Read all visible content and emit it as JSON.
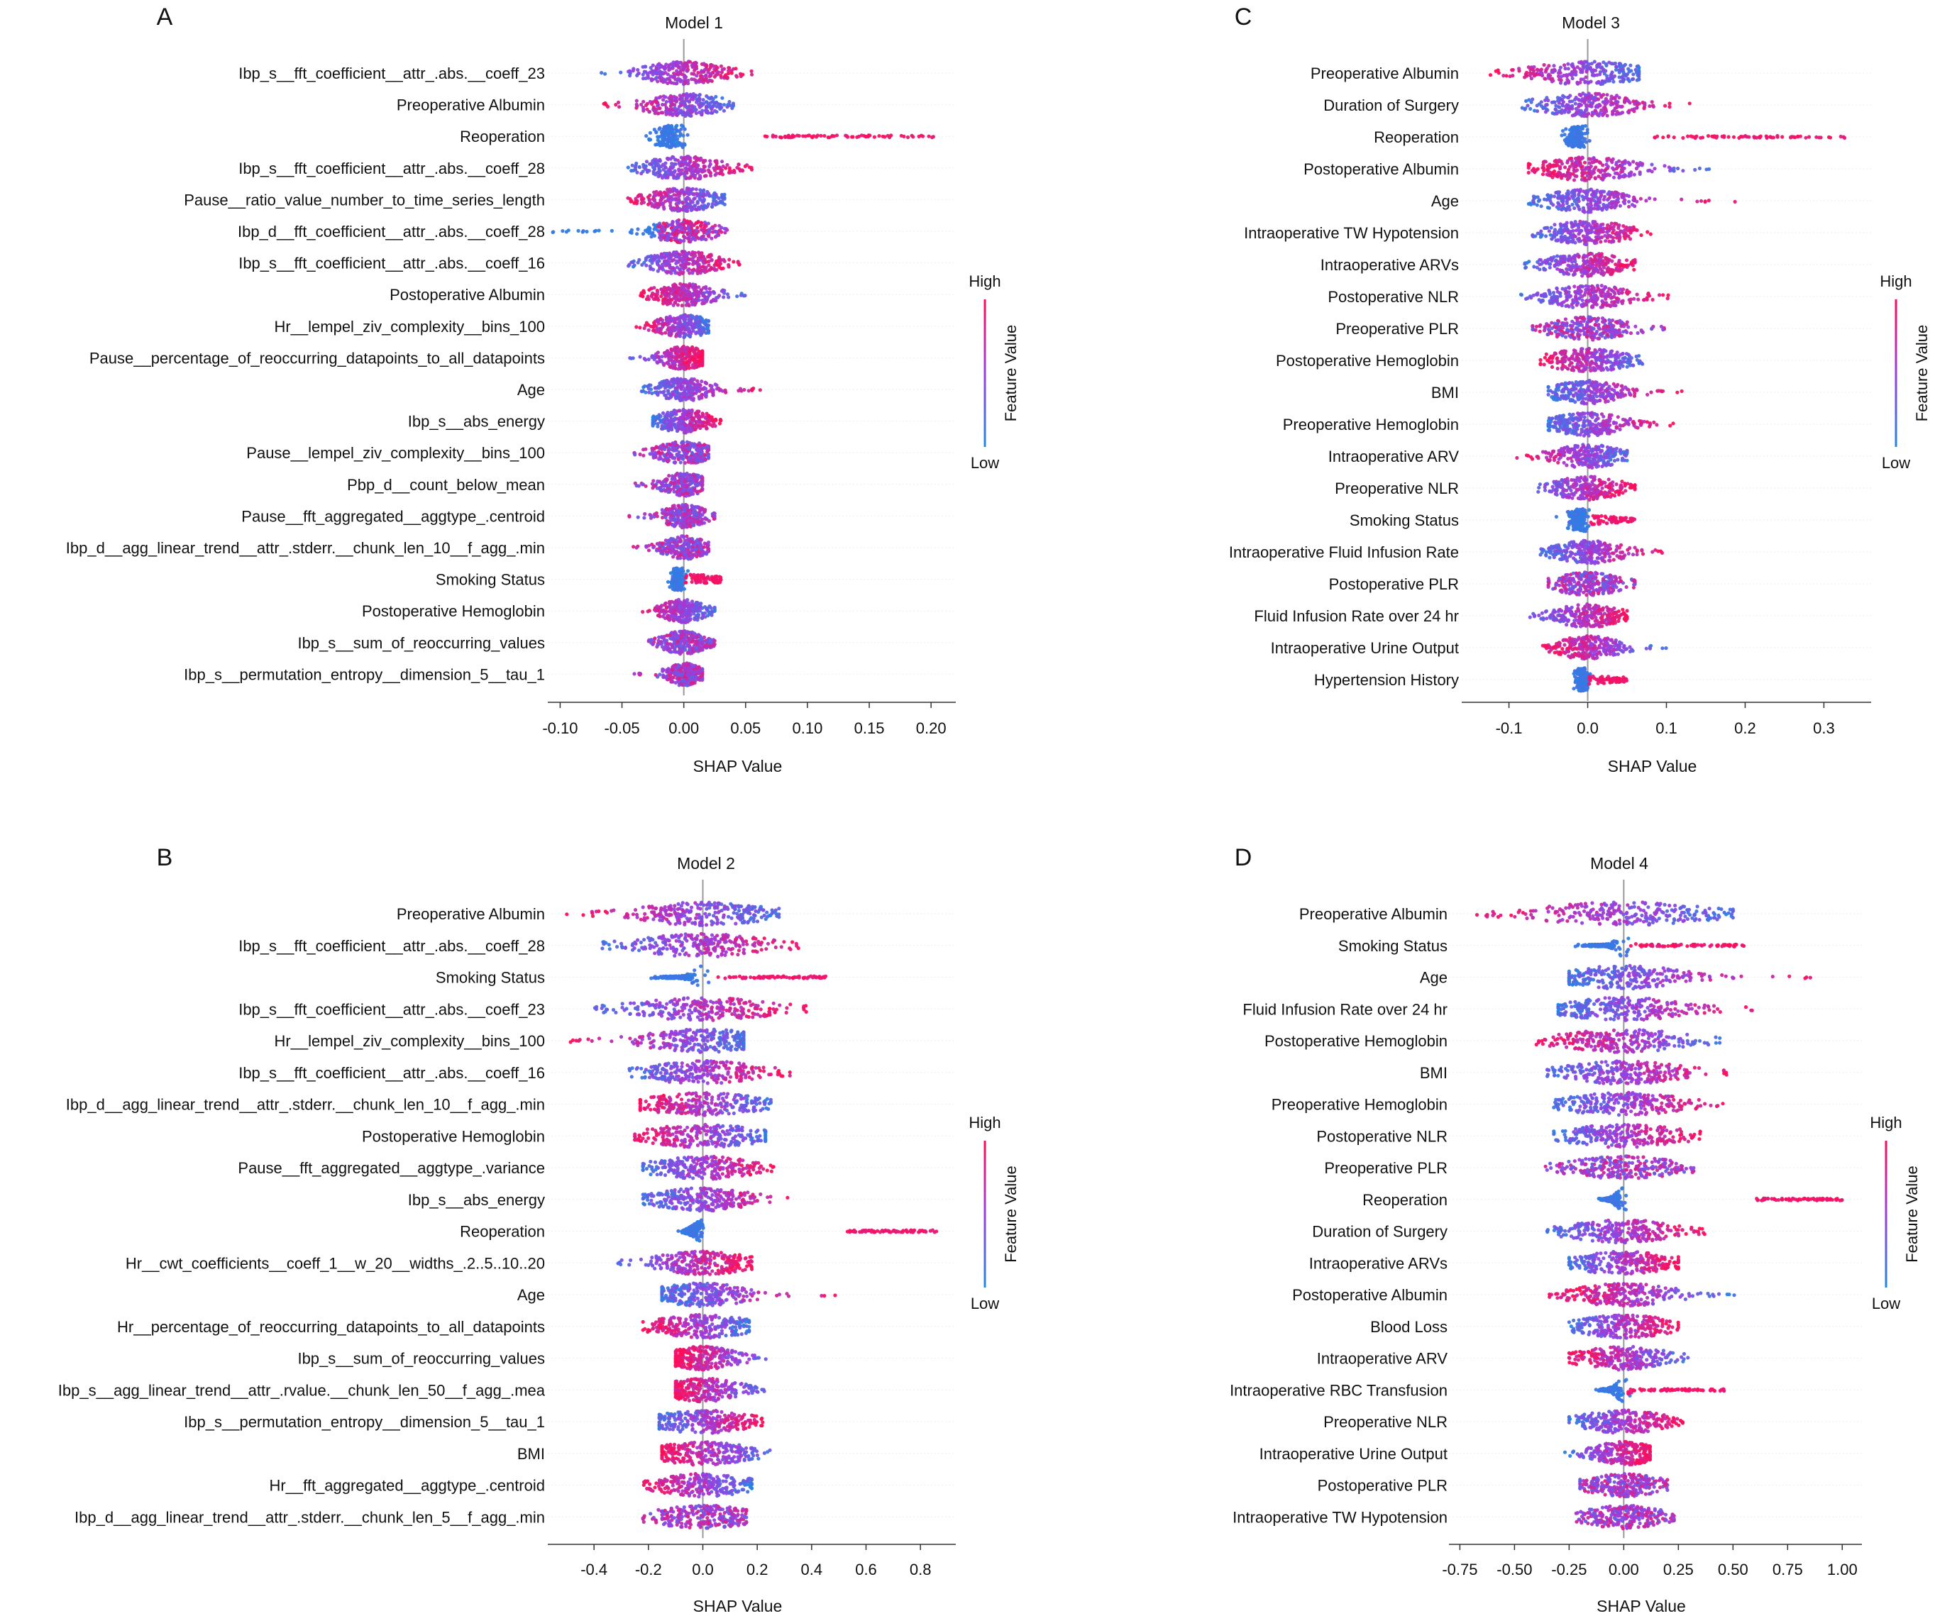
{
  "colors": {
    "high": "#ff0d57",
    "mid": "#9a3ee0",
    "low": "#1e88e5",
    "axis": "#333333",
    "zero_line": "#999999",
    "row_grid": "#eeeeee"
  },
  "shared": {
    "xlabel": "SHAP Value",
    "colorbar_title": "Feature Value",
    "colorbar_high": "High",
    "colorbar_low": "Low"
  },
  "chart_data": [
    {
      "type": "scatter",
      "panel_letter": "A",
      "title": "Model 1",
      "xlabel": "SHAP Value",
      "xlim": [
        -0.11,
        0.22
      ],
      "xticks": [
        -0.1,
        -0.05,
        0.0,
        0.05,
        0.1,
        0.15,
        0.2
      ],
      "xtick_labels": [
        "-0.10",
        "-0.05",
        "0.00",
        "0.05",
        "0.10",
        "0.15",
        "0.20"
      ],
      "features": [
        {
          "name": "Ibp_s__fft_coefficient__attr_.abs.__coeff_23",
          "min": -0.07,
          "max": 0.06,
          "pattern": "high_right",
          "core": 0.018
        },
        {
          "name": "Preoperative Albumin",
          "min": -0.065,
          "max": 0.04,
          "pattern": "high_left",
          "core": 0.018
        },
        {
          "name": "Reoperation",
          "min": -0.02,
          "max": 0.205,
          "pattern": "binary_right",
          "low_center": -0.012,
          "high_min": 0.055
        },
        {
          "name": "Ibp_s__fft_coefficient__attr_.abs.__coeff_28",
          "min": -0.045,
          "max": 0.055,
          "pattern": "high_right",
          "core": 0.018
        },
        {
          "name": "Pause__ratio_value_number_to_time_series_length",
          "min": -0.05,
          "max": 0.035,
          "pattern": "high_left",
          "core": 0.016
        },
        {
          "name": "Ibp_d__fft_coefficient__attr_.abs.__coeff_28",
          "min": -0.11,
          "max": 0.035,
          "pattern": "low_tail_left",
          "core": 0.014
        },
        {
          "name": "Ibp_s__fft_coefficient__attr_.abs.__coeff_16",
          "min": -0.045,
          "max": 0.045,
          "pattern": "high_right",
          "core": 0.016
        },
        {
          "name": "Postoperative Albumin",
          "min": -0.035,
          "max": 0.055,
          "pattern": "high_left",
          "core": 0.014
        },
        {
          "name": "Hr__lempel_ziv_complexity__bins_100",
          "min": -0.04,
          "max": 0.02,
          "pattern": "high_left",
          "core": 0.012
        },
        {
          "name": "Pause__percentage_of_reoccurring_datapoints_to_all_datapoints",
          "min": -0.05,
          "max": 0.015,
          "pattern": "high_right",
          "core": 0.01
        },
        {
          "name": "Age",
          "min": -0.035,
          "max": 0.07,
          "pattern": "high_right",
          "core": 0.012
        },
        {
          "name": "Ibp_s__abs_energy",
          "min": -0.025,
          "max": 0.03,
          "pattern": "high_right",
          "core": 0.012
        },
        {
          "name": "Pause__lempel_ziv_complexity__bins_100",
          "min": -0.04,
          "max": 0.02,
          "pattern": "mixed",
          "core": 0.012
        },
        {
          "name": "Pbp_d__count_below_mean",
          "min": -0.04,
          "max": 0.015,
          "pattern": "mixed",
          "core": 0.01
        },
        {
          "name": "Pause__fft_aggregated__aggtype_.centroid",
          "min": -0.045,
          "max": 0.025,
          "pattern": "mixed",
          "core": 0.01
        },
        {
          "name": "Ibp_d__agg_linear_trend__attr_.stderr.__chunk_len_10__f_agg_.min",
          "min": -0.045,
          "max": 0.02,
          "pattern": "mixed",
          "core": 0.01
        },
        {
          "name": "Smoking Status",
          "min": -0.01,
          "max": 0.03,
          "pattern": "binary_right",
          "low_center": -0.005,
          "high_min": 0.0
        },
        {
          "name": "Postoperative Hemoglobin",
          "min": -0.04,
          "max": 0.025,
          "pattern": "high_left",
          "core": 0.01
        },
        {
          "name": "Ibp_s__sum_of_reoccurring_values",
          "min": -0.03,
          "max": 0.025,
          "pattern": "mixed",
          "core": 0.01
        },
        {
          "name": "Ibp_s__permutation_entropy__dimension_5__tau_1",
          "min": -0.04,
          "max": 0.015,
          "pattern": "mixed",
          "core": 0.008
        }
      ]
    },
    {
      "type": "scatter",
      "panel_letter": "B",
      "title": "Model 2",
      "xlabel": "SHAP Value",
      "xlim": [
        -0.57,
        0.93
      ],
      "xticks": [
        -0.4,
        -0.2,
        0.0,
        0.2,
        0.4,
        0.6,
        0.8
      ],
      "xtick_labels": [
        "-0.4",
        "-0.2",
        "0.0",
        "0.2",
        "0.4",
        "0.6",
        "0.8"
      ],
      "features": [
        {
          "name": "Preoperative Albumin",
          "min": -0.5,
          "max": 0.28,
          "pattern": "high_left",
          "core": 0.14
        },
        {
          "name": "Ibp_s__fft_coefficient__attr_.abs.__coeff_28",
          "min": -0.37,
          "max": 0.36,
          "pattern": "high_right",
          "core": 0.14
        },
        {
          "name": "Smoking Status",
          "min": -0.2,
          "max": 0.46,
          "pattern": "binary_right",
          "low_center": -0.09,
          "high_min": 0.05
        },
        {
          "name": "Ibp_s__fft_coefficient__attr_.abs.__coeff_23",
          "min": -0.4,
          "max": 0.38,
          "pattern": "high_right",
          "core": 0.14
        },
        {
          "name": "Hr__lempel_ziv_complexity__bins_100",
          "min": -0.5,
          "max": 0.15,
          "pattern": "high_left",
          "core": 0.12
        },
        {
          "name": "Ibp_s__fft_coefficient__attr_.abs.__coeff_16",
          "min": -0.27,
          "max": 0.32,
          "pattern": "high_right",
          "core": 0.12
        },
        {
          "name": "Ibp_d__agg_linear_trend__attr_.stderr.__chunk_len_10__f_agg_.min",
          "min": -0.23,
          "max": 0.25,
          "pattern": "high_left",
          "core": 0.12
        },
        {
          "name": "Postoperative Hemoglobin",
          "min": -0.25,
          "max": 0.23,
          "pattern": "high_left",
          "core": 0.12
        },
        {
          "name": "Pause__fft_aggregated__aggtype_.variance",
          "min": -0.22,
          "max": 0.26,
          "pattern": "high_right",
          "core": 0.11
        },
        {
          "name": "Ibp_s__abs_energy",
          "min": -0.22,
          "max": 0.32,
          "pattern": "high_right",
          "core": 0.1
        },
        {
          "name": "Reoperation",
          "min": -0.05,
          "max": 0.86,
          "pattern": "binary_right",
          "low_center": -0.04,
          "high_min": 0.53
        },
        {
          "name": "Hr__cwt_coefficients__coeff_1__w_20__widths_.2..5..10..20",
          "min": -0.34,
          "max": 0.18,
          "pattern": "high_right",
          "core": 0.1
        },
        {
          "name": "Age",
          "min": -0.15,
          "max": 0.5,
          "pattern": "high_right",
          "core": 0.1
        },
        {
          "name": "Hr__percentage_of_reoccurring_datapoints_to_all_datapoints",
          "min": -0.22,
          "max": 0.17,
          "pattern": "high_left",
          "core": 0.1
        },
        {
          "name": "Ibp_s__sum_of_reoccurring_values",
          "min": -0.1,
          "max": 0.27,
          "pattern": "high_left",
          "core": 0.07
        },
        {
          "name": "Ibp_s__agg_linear_trend__attr_.rvalue.__chunk_len_50__f_agg_.mea",
          "min": -0.1,
          "max": 0.24,
          "pattern": "high_left",
          "core": 0.08
        },
        {
          "name": "Ibp_s__permutation_entropy__dimension_5__tau_1",
          "min": -0.16,
          "max": 0.22,
          "pattern": "high_right",
          "core": 0.1
        },
        {
          "name": "BMI",
          "min": -0.15,
          "max": 0.26,
          "pattern": "high_left",
          "core": 0.1
        },
        {
          "name": "Hr__fft_aggregated__aggtype_.centroid",
          "min": -0.22,
          "max": 0.18,
          "pattern": "high_left",
          "core": 0.1
        },
        {
          "name": "Ibp_d__agg_linear_trend__attr_.stderr.__chunk_len_5__f_agg_.min",
          "min": -0.22,
          "max": 0.16,
          "pattern": "mixed",
          "core": 0.1
        }
      ]
    },
    {
      "type": "scatter",
      "panel_letter": "C",
      "title": "Model 3",
      "xlabel": "SHAP Value",
      "xlim": [
        -0.16,
        0.36
      ],
      "xticks": [
        -0.1,
        0.0,
        0.1,
        0.2,
        0.3
      ],
      "xtick_labels": [
        "-0.1",
        "0.0",
        "0.1",
        "0.2",
        "0.3"
      ],
      "features": [
        {
          "name": "Preoperative Albumin",
          "min": -0.135,
          "max": 0.065,
          "pattern": "high_left",
          "core": 0.04
        },
        {
          "name": "Duration of Surgery",
          "min": -0.09,
          "max": 0.13,
          "pattern": "high_right",
          "core": 0.035
        },
        {
          "name": "Reoperation",
          "min": -0.03,
          "max": 0.33,
          "pattern": "binary_right",
          "low_center": -0.015,
          "high_min": 0.085
        },
        {
          "name": "Postoperative Albumin",
          "min": -0.075,
          "max": 0.16,
          "pattern": "high_left",
          "core": 0.035
        },
        {
          "name": "Age",
          "min": -0.075,
          "max": 0.19,
          "pattern": "high_right",
          "core": 0.03
        },
        {
          "name": "Intraoperative TW Hypotension",
          "min": -0.07,
          "max": 0.08,
          "pattern": "high_right",
          "core": 0.03
        },
        {
          "name": "Intraoperative ARVs",
          "min": -0.08,
          "max": 0.06,
          "pattern": "high_right",
          "core": 0.03
        },
        {
          "name": "Postoperative NLR",
          "min": -0.1,
          "max": 0.11,
          "pattern": "high_right",
          "core": 0.03
        },
        {
          "name": "Preoperative PLR",
          "min": -0.07,
          "max": 0.1,
          "pattern": "mixed",
          "core": 0.028
        },
        {
          "name": "Postoperative Hemoglobin",
          "min": -0.06,
          "max": 0.07,
          "pattern": "high_left",
          "core": 0.028
        },
        {
          "name": "BMI",
          "min": -0.05,
          "max": 0.12,
          "pattern": "high_right",
          "core": 0.026
        },
        {
          "name": "Preoperative Hemoglobin",
          "min": -0.05,
          "max": 0.11,
          "pattern": "high_right",
          "core": 0.026
        },
        {
          "name": "Intraoperative ARV",
          "min": -0.09,
          "max": 0.05,
          "pattern": "high_left",
          "core": 0.025
        },
        {
          "name": "Preoperative NLR",
          "min": -0.08,
          "max": 0.06,
          "pattern": "high_right",
          "core": 0.025
        },
        {
          "name": "Smoking Status",
          "min": -0.025,
          "max": 0.06,
          "pattern": "binary_right",
          "low_center": -0.012,
          "high_min": 0.002
        },
        {
          "name": "Intraoperative Fluid Infusion Rate",
          "min": -0.06,
          "max": 0.1,
          "pattern": "high_right",
          "core": 0.025
        },
        {
          "name": "Postoperative PLR",
          "min": -0.05,
          "max": 0.06,
          "pattern": "mixed",
          "core": 0.024
        },
        {
          "name": "Fluid Infusion Rate over 24 hr",
          "min": -0.08,
          "max": 0.05,
          "pattern": "high_right",
          "core": 0.024
        },
        {
          "name": "Intraoperative Urine Output",
          "min": -0.06,
          "max": 0.1,
          "pattern": "high_left",
          "core": 0.024
        },
        {
          "name": "Hypertension History",
          "min": -0.015,
          "max": 0.05,
          "pattern": "binary_right",
          "low_center": -0.008,
          "high_min": 0.0
        }
      ]
    },
    {
      "type": "scatter",
      "panel_letter": "D",
      "title": "Model 4",
      "xlabel": "SHAP Value",
      "xlim": [
        -0.8,
        1.09
      ],
      "xticks": [
        -0.75,
        -0.5,
        -0.25,
        0.0,
        0.25,
        0.5,
        0.75,
        1.0
      ],
      "xtick_labels": [
        "-0.75",
        "-0.50",
        "-0.25",
        "0.00",
        "0.25",
        "0.50",
        "0.75",
        "1.00"
      ],
      "features": [
        {
          "name": "Preoperative Albumin",
          "min": -0.72,
          "max": 0.5,
          "pattern": "high_left",
          "core": 0.22
        },
        {
          "name": "Smoking Status",
          "min": -0.25,
          "max": 0.55,
          "pattern": "binary_right",
          "low_center": -0.1,
          "high_min": 0.03
        },
        {
          "name": "Age",
          "min": -0.25,
          "max": 0.87,
          "pattern": "high_right",
          "core": 0.16
        },
        {
          "name": "Fluid Infusion Rate over 24 hr",
          "min": -0.3,
          "max": 0.64,
          "pattern": "high_right",
          "core": 0.16
        },
        {
          "name": "Postoperative Hemoglobin",
          "min": -0.4,
          "max": 0.45,
          "pattern": "high_left",
          "core": 0.16
        },
        {
          "name": "BMI",
          "min": -0.35,
          "max": 0.47,
          "pattern": "high_right",
          "core": 0.15
        },
        {
          "name": "Preoperative Hemoglobin",
          "min": -0.32,
          "max": 0.5,
          "pattern": "high_right",
          "core": 0.15
        },
        {
          "name": "Postoperative NLR",
          "min": -0.32,
          "max": 0.35,
          "pattern": "high_right",
          "core": 0.15
        },
        {
          "name": "Preoperative PLR",
          "min": -0.4,
          "max": 0.32,
          "pattern": "mixed",
          "core": 0.14
        },
        {
          "name": "Reoperation",
          "min": -0.06,
          "max": 1.0,
          "pattern": "binary_right",
          "low_center": -0.05,
          "high_min": 0.6
        },
        {
          "name": "Duration of Surgery",
          "min": -0.35,
          "max": 0.37,
          "pattern": "high_right",
          "core": 0.14
        },
        {
          "name": "Intraoperative ARVs",
          "min": -0.25,
          "max": 0.25,
          "pattern": "high_right",
          "core": 0.13
        },
        {
          "name": "Postoperative Albumin",
          "min": -0.34,
          "max": 0.52,
          "pattern": "high_left",
          "core": 0.13
        },
        {
          "name": "Blood Loss",
          "min": -0.25,
          "max": 0.25,
          "pattern": "high_right",
          "core": 0.12
        },
        {
          "name": "Intraoperative ARV",
          "min": -0.25,
          "max": 0.3,
          "pattern": "high_left",
          "core": 0.12
        },
        {
          "name": "Intraoperative RBC Transfusion",
          "min": -0.1,
          "max": 0.47,
          "pattern": "binary_right",
          "low_center": -0.06,
          "high_min": 0.02
        },
        {
          "name": "Preoperative NLR",
          "min": -0.25,
          "max": 0.27,
          "pattern": "high_right",
          "core": 0.12
        },
        {
          "name": "Intraoperative Urine Output",
          "min": -0.27,
          "max": 0.12,
          "pattern": "high_right",
          "core": 0.08
        },
        {
          "name": "Postoperative PLR",
          "min": -0.2,
          "max": 0.2,
          "pattern": "mixed",
          "core": 0.1
        },
        {
          "name": "Intraoperative TW Hypotension",
          "min": -0.25,
          "max": 0.23,
          "pattern": "mixed",
          "core": 0.1
        }
      ]
    }
  ]
}
